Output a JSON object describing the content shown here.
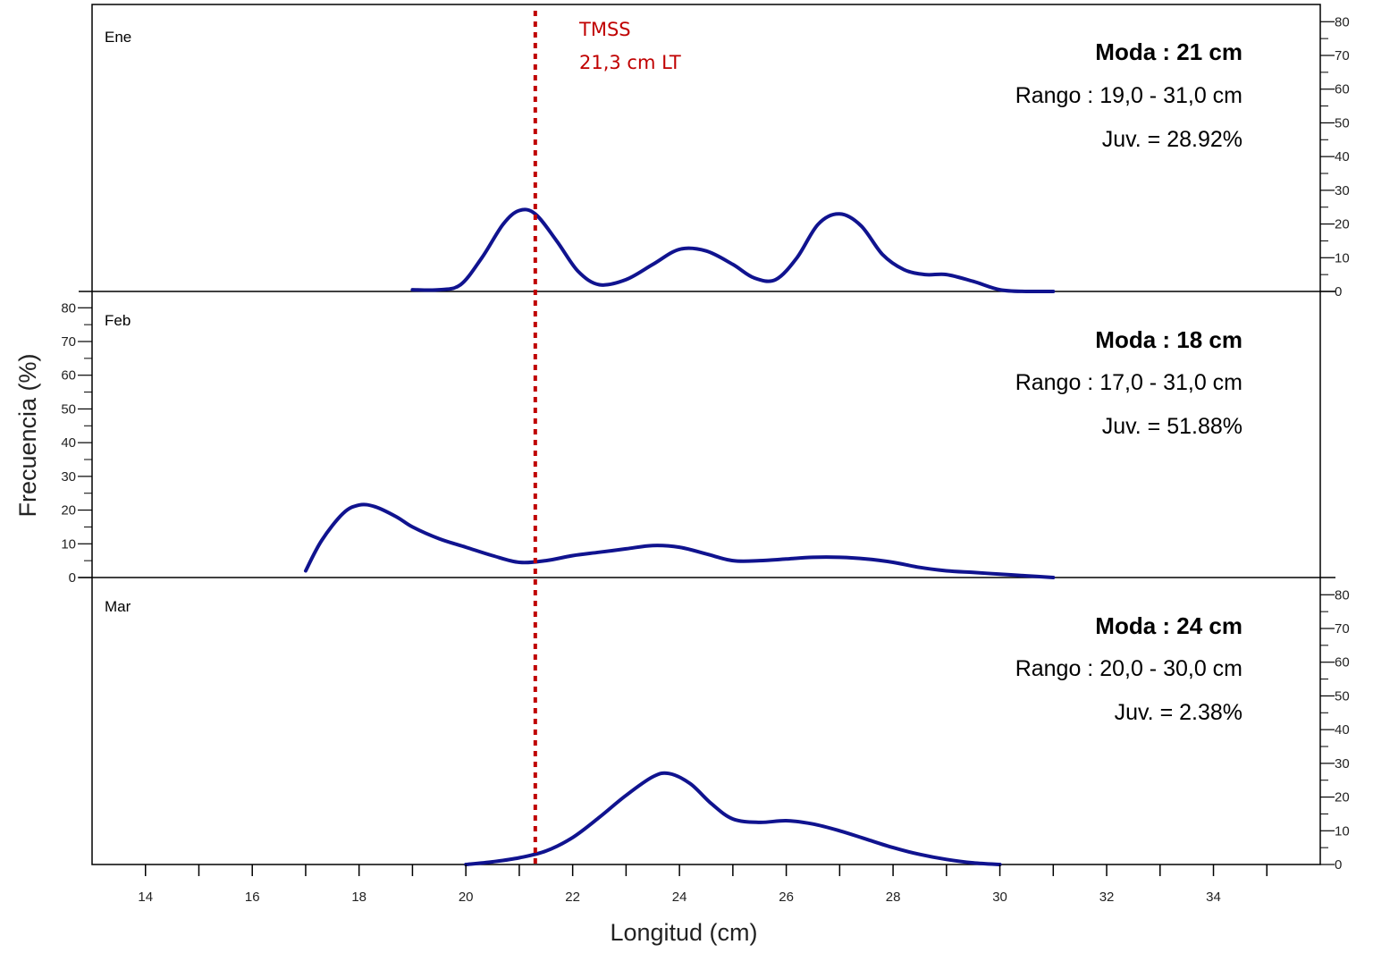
{
  "chart_data": {
    "type": "line",
    "xlabel": "Longitud (cm)",
    "ylabel": "Frecuencia (%)",
    "xlim": [
      13,
      36
    ],
    "ylim": [
      0,
      85
    ],
    "x_ticks": [
      14,
      16,
      18,
      20,
      22,
      24,
      26,
      28,
      30,
      32,
      34
    ],
    "y_ticks": [
      0,
      10,
      20,
      30,
      40,
      50,
      60,
      70,
      80
    ],
    "grid": false,
    "annotation": {
      "line1": "TMSS",
      "line2": "21,3 cm LT",
      "x": 21.3,
      "color": "#c00000"
    },
    "panels": [
      {
        "label": "Ene",
        "moda": "Moda : 21 cm",
        "rango": "Rango : 19,0 - 31,0 cm",
        "juv": "Juv. = 28.92%",
        "y_axis_side": "right",
        "series": [
          {
            "x": [
              19.0,
              19.5,
              19.9,
              20.3,
              20.7,
              21.0,
              21.3,
              21.7,
              22.1,
              22.5,
              23.0,
              23.5,
              24.0,
              24.5,
              25.0,
              25.4,
              25.8,
              26.2,
              26.6,
              27.0,
              27.4,
              27.8,
              28.2,
              28.6,
              29.0,
              29.5,
              30.0,
              30.5,
              31.0
            ],
            "y": [
              0.5,
              0.5,
              2,
              10,
              20,
              24,
              23,
              15,
              6,
              2,
              3.5,
              8,
              12.5,
              12,
              8,
              4,
              3.5,
              10,
              20,
              23,
              19.5,
              11,
              6.5,
              5,
              5,
              3,
              0.5,
              0,
              0
            ]
          }
        ]
      },
      {
        "label": "Feb",
        "moda": "Moda : 18 cm",
        "rango": "Rango : 17,0 - 31,0 cm",
        "juv": "Juv. = 51.88%",
        "y_axis_side": "left",
        "series": [
          {
            "x": [
              17.0,
              17.3,
              17.7,
              18.0,
              18.3,
              18.7,
              19.0,
              19.5,
              20.0,
              20.5,
              21.0,
              21.5,
              22.0,
              22.5,
              23.0,
              23.5,
              24.0,
              24.5,
              25.0,
              25.5,
              26.0,
              26.5,
              27.0,
              27.5,
              28.0,
              28.5,
              29.0,
              29.5,
              30.0,
              30.5,
              31.0
            ],
            "y": [
              2,
              11,
              19,
              21.5,
              21,
              18,
              15,
              11.5,
              9,
              6.5,
              4.5,
              5,
              6.5,
              7.5,
              8.5,
              9.5,
              9,
              7,
              5,
              5,
              5.5,
              6,
              6,
              5.5,
              4.5,
              3,
              2,
              1.5,
              1,
              0.5,
              0
            ]
          }
        ]
      },
      {
        "label": "Mar",
        "moda": "Moda : 24 cm",
        "rango": "Rango : 20,0 - 30,0 cm",
        "juv": "Juv. = 2.38%",
        "y_axis_side": "right",
        "series": [
          {
            "x": [
              20.0,
              20.5,
              21.0,
              21.5,
              22.0,
              22.5,
              23.0,
              23.5,
              23.8,
              24.2,
              24.6,
              25.0,
              25.5,
              26.0,
              26.5,
              27.0,
              27.5,
              28.0,
              28.5,
              29.0,
              29.5,
              30.0
            ],
            "y": [
              0,
              0.8,
              2,
              4,
              8,
              14,
              20.5,
              26,
              27,
              24,
              18,
              13.5,
              12.5,
              13,
              12,
              10,
              7.5,
              5,
              3,
              1.5,
              0.5,
              0
            ]
          }
        ]
      }
    ]
  }
}
